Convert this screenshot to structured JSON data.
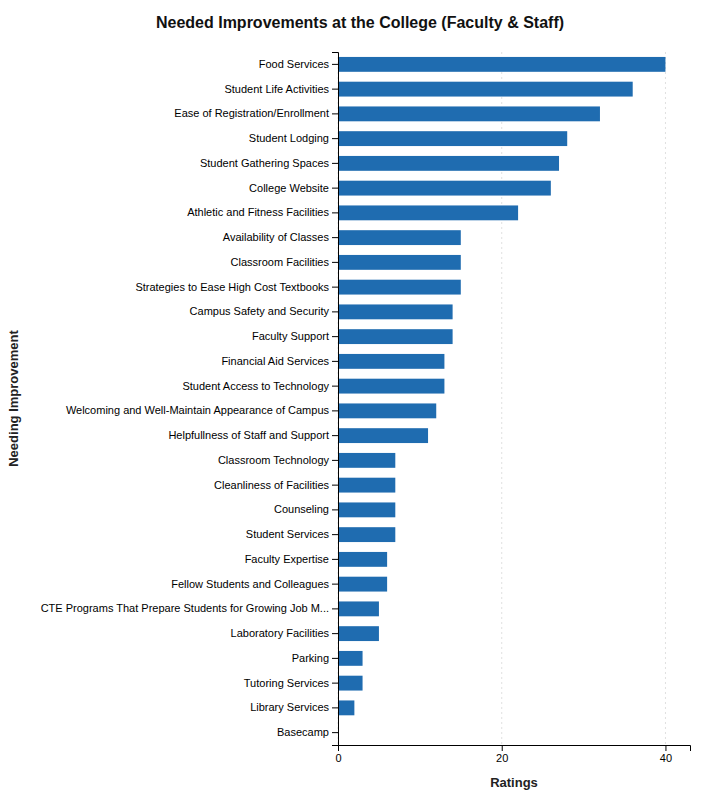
{
  "chart_data": {
    "type": "bar",
    "orientation": "horizontal",
    "title": "Needed Improvements at the College (Faculty & Staff)",
    "categories": [
      "Food Services",
      "Student Life Activities",
      "Ease of Registration/Enrollment",
      "Student Lodging",
      "Student Gathering Spaces",
      "College Website",
      "Athletic and Fitness Facilities",
      "Availability of Classes",
      "Classroom Facilities",
      "Strategies to Ease High Cost Textbooks",
      "Campus Safety and Security",
      "Faculty Support",
      "Financial Aid Services",
      "Student Access to Technology",
      "Welcoming and Well-Maintain Appearance of Campus",
      "Helpfullness of Staff and Support",
      "Classroom Technology",
      "Cleanliness of Facilities",
      "Counseling",
      "Student Services",
      "Faculty Expertise",
      "Fellow Students and Colleagues",
      "CTE Programs That Prepare Students for Growing Job M...",
      "Laboratory Facilities",
      "Parking",
      "Tutoring Services",
      "Library Services",
      "Basecamp"
    ],
    "values": [
      40,
      36,
      32,
      28,
      27,
      26,
      22,
      15,
      15,
      15,
      14,
      14,
      13,
      13,
      12,
      11,
      7,
      7,
      7,
      7,
      6,
      6,
      5,
      5,
      3,
      3,
      2,
      0
    ],
    "color": "#1F6CB0",
    "xlabel": "Ratings",
    "ylabel": "Needing Improvement",
    "xlim": [
      0,
      43
    ],
    "xticks": [
      0,
      20,
      40
    ],
    "grid": true
  }
}
